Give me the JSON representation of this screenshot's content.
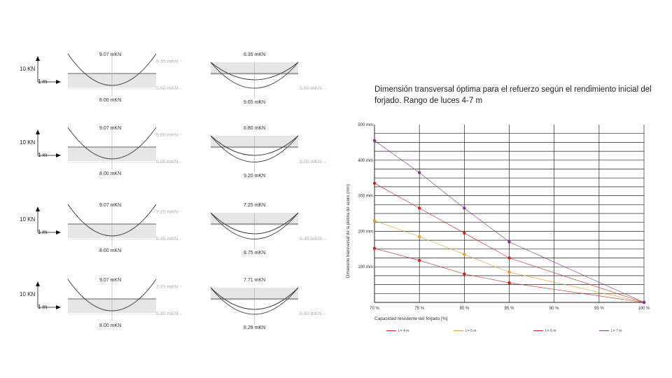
{
  "diagrams": [
    {
      "left_top": "9.07 mKN",
      "left_bottom": "8.00 mKN",
      "right_top": "6.35 mKN",
      "right_bottom": "9.65 mKN",
      "ref_upper": "6.35 mKN",
      "ref_lower": "5.60 mKN"
    },
    {
      "left_top": "9.07 mKN",
      "left_bottom": "8.00 mKN",
      "right_top": "6.80 mKN",
      "right_bottom": "9.20 mKN",
      "ref_upper": "6.80 mKN",
      "ref_lower": "6.00 mKN"
    },
    {
      "left_top": "9.07 mKN",
      "left_bottom": "8.00 mKN",
      "right_top": "7.25 mKN",
      "right_bottom": "8.75 mKN",
      "ref_upper": "7.25 mKN",
      "ref_lower": "6.40 mKN"
    },
    {
      "left_top": "9.07 mKN",
      "left_bottom": "8.00 mKN",
      "right_top": "7.71 mKN",
      "right_bottom": "8.29 mKN",
      "ref_upper": "7.71 mKN",
      "ref_lower": "6.80 mKN"
    }
  ],
  "scale": {
    "force": "10 KN",
    "length": "1 m"
  },
  "colors": {
    "line": "#333333",
    "fill": "#e6e6e6",
    "ref": "#c8c8c8",
    "red": "#cc2222",
    "orange": "#e0a030",
    "purple": "#7a3a8a"
  },
  "chart_data": {
    "type": "line",
    "title": "Dimensión transversal óptima para el refuerzo según el rendimiento inicial del forjado. Rango de luces 4-7 m",
    "xlabel": "Capacidad resistente del forjado [%]",
    "ylabel": "Dimensión transversal de la pletina de acero (mm)",
    "x": [
      70,
      75,
      80,
      85,
      90,
      95,
      100
    ],
    "x_ticks": [
      "70 %",
      "75 %",
      "80 %",
      "85 %",
      "90 %",
      "95 %",
      "100 %"
    ],
    "y_ticks": [
      "500 mm",
      "400 mm",
      "300 mm",
      "200 mm",
      "100 mm"
    ],
    "y_tick_values": [
      500,
      400,
      300,
      200,
      100
    ],
    "ylim": [
      0,
      500
    ],
    "xlim": [
      70,
      100
    ],
    "grid": true,
    "legend_position": "bottom",
    "series": [
      {
        "name": "L= 4 m",
        "color": "#cc2222",
        "x": [
          70,
          75,
          80,
          85,
          100
        ],
        "values": [
          152,
          118,
          80,
          55,
          0
        ]
      },
      {
        "name": "L= 5 m",
        "color": "#e0a030",
        "x": [
          70,
          75,
          80,
          85,
          100
        ],
        "values": [
          230,
          185,
          135,
          85,
          0
        ]
      },
      {
        "name": "L= 6 m",
        "color": "#cc2222",
        "x": [
          70,
          75,
          80,
          85,
          100
        ],
        "values": [
          335,
          265,
          195,
          125,
          0
        ]
      },
      {
        "name": "L= 7 m",
        "color": "#7a3a8a",
        "x": [
          70,
          75,
          80,
          85,
          100
        ],
        "values": [
          455,
          365,
          265,
          170,
          0
        ]
      }
    ]
  }
}
